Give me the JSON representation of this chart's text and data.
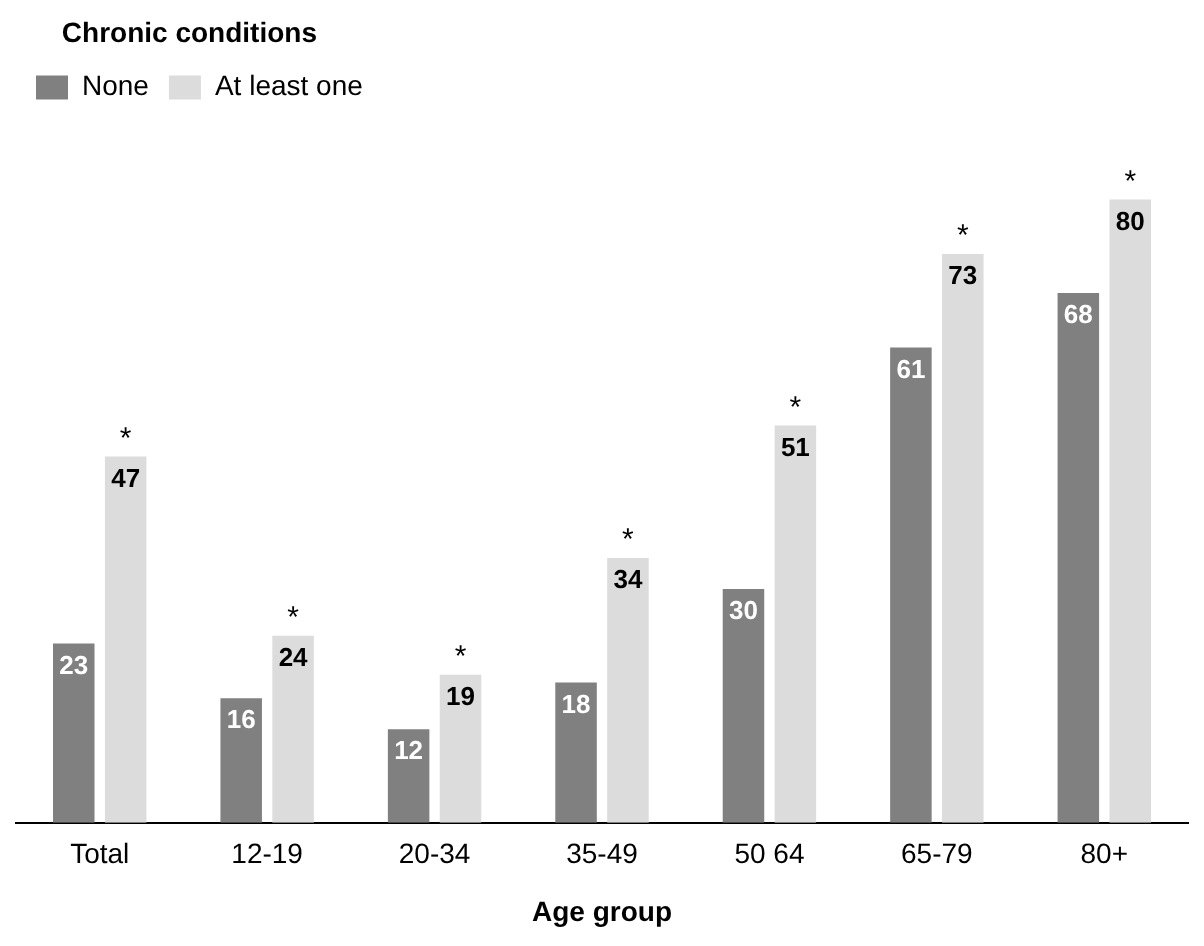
{
  "chart_data": {
    "type": "bar",
    "xlabel": "Age group",
    "legend_title": "Chronic conditions",
    "legend": "top left",
    "tick_labels": "x",
    "grid": false,
    "data_labels": true,
    "categories": [
      "Total",
      "12-19",
      "20-34",
      "35-49",
      "50 64",
      "65-79",
      "80+"
    ],
    "series": [
      {
        "name": "None",
        "color": "#808080",
        "values": [
          23,
          16,
          12,
          18,
          30,
          61,
          68
        ]
      },
      {
        "name": "At least one",
        "color": "#dcdcdc",
        "values": [
          47,
          24,
          19,
          34,
          51,
          73,
          80
        ]
      }
    ],
    "annotations": [
      {
        "text": "*",
        "x": "Total",
        "y": 47
      },
      {
        "text": "*",
        "x": "12-19",
        "y": 24
      },
      {
        "text": "*",
        "x": "20-34",
        "y": 19
      },
      {
        "text": "*",
        "x": "35-49",
        "y": 34
      },
      {
        "text": "*",
        "x": "50 64",
        "y": 51
      },
      {
        "text": "*",
        "x": "65-79",
        "y": 73
      },
      {
        "text": "*",
        "x": "80+",
        "y": 80
      }
    ]
  }
}
